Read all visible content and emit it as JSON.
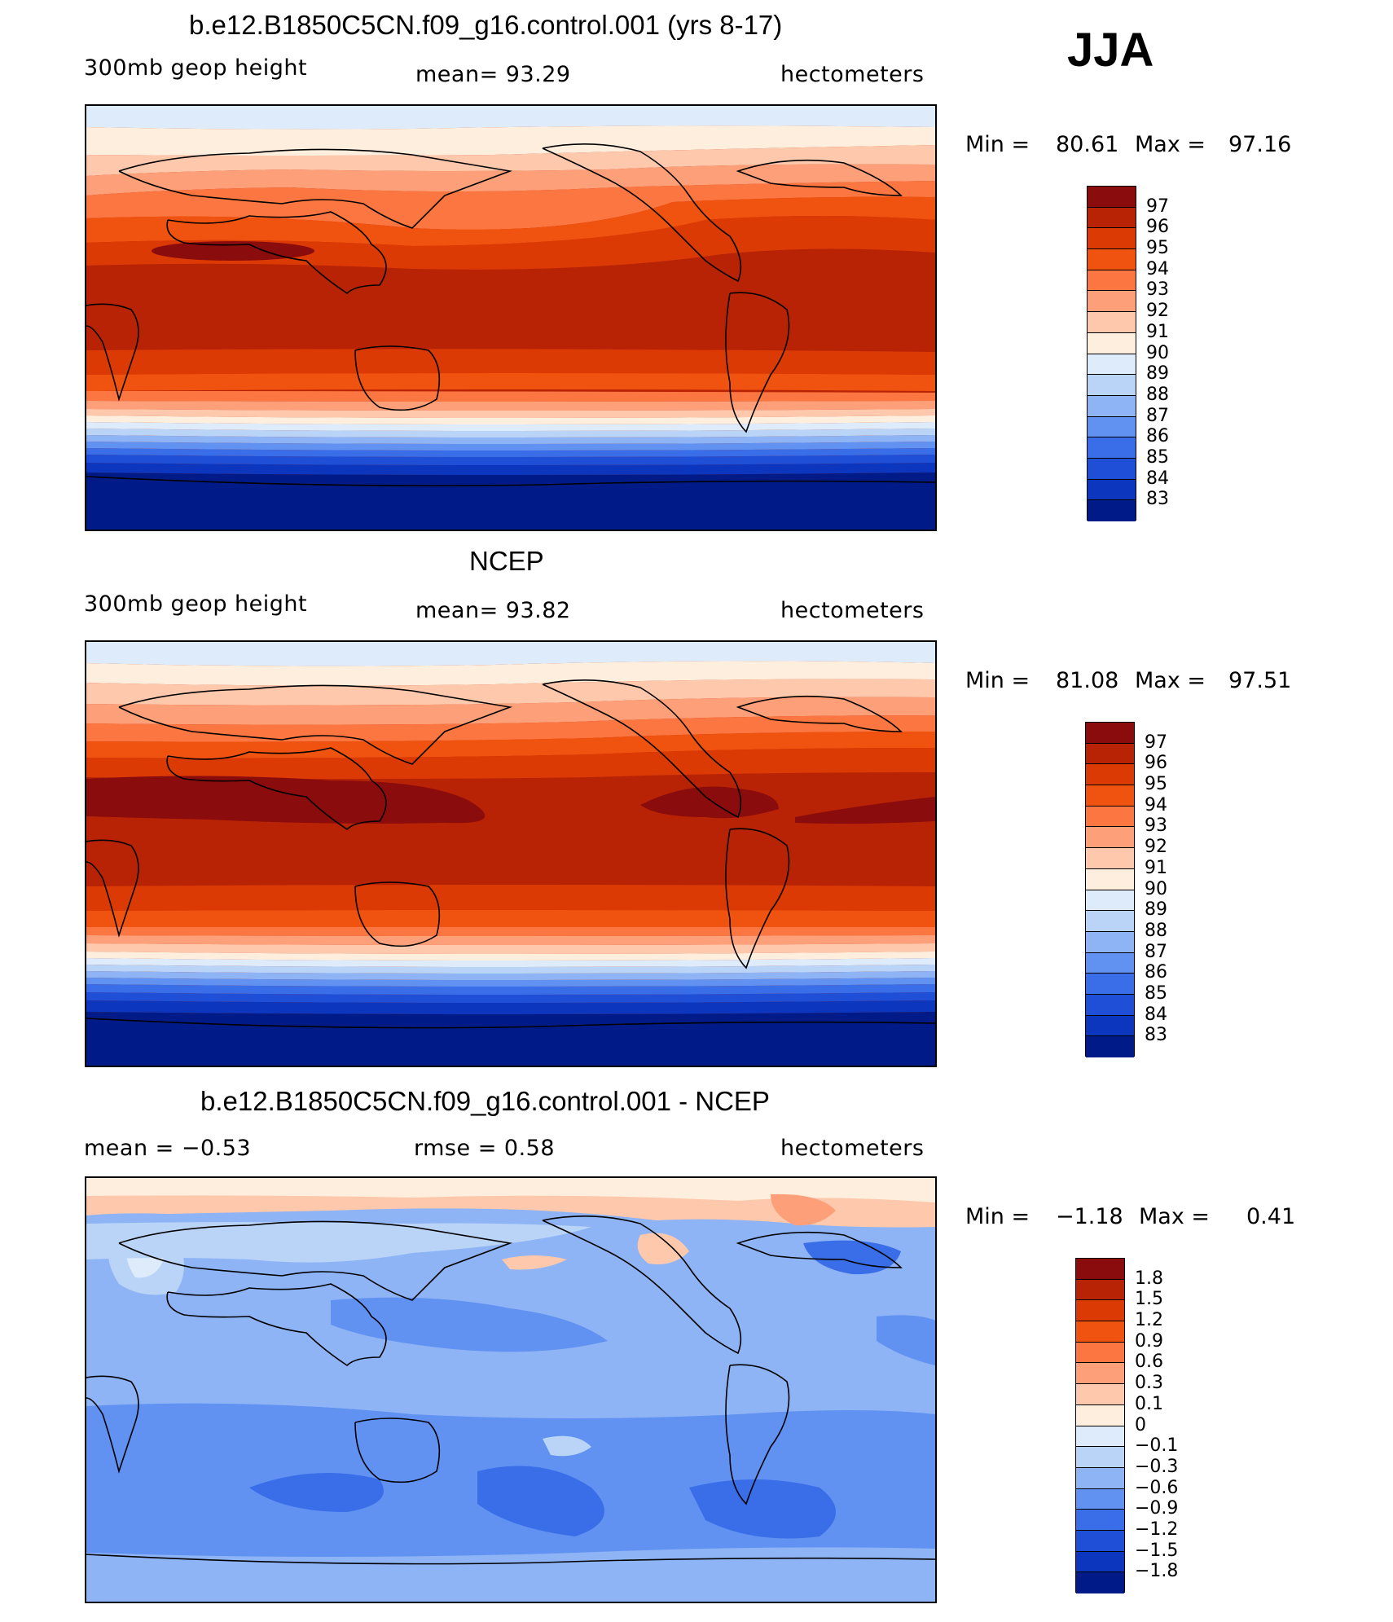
{
  "season": "JJA",
  "panels": [
    {
      "title": "b.e12.B1850C5CN.f09_g16.control.001 (yrs 8-17)",
      "left_label": "300mb  geop  height",
      "center_label": "mean=   93.29",
      "right_label": "hectometers",
      "min_label": "Min  =",
      "min_value": "80.61",
      "max_label": "Max  =",
      "max_value": "97.16",
      "colorbar_labels": [
        "97",
        "96",
        "95",
        "94",
        "93",
        "92",
        "91",
        "90",
        "89",
        "88",
        "87",
        "86",
        "85",
        "84",
        "83"
      ],
      "colorbar_colors": [
        "#8b0c0c",
        "#b82306",
        "#db3a05",
        "#f0520f",
        "#fb7640",
        "#fda07a",
        "#fec8ac",
        "#feeedd",
        "#deebfa",
        "#bad4f8",
        "#8fb4f5",
        "#6192f1",
        "#3a6ee8",
        "#1f4ed7",
        "#0c36bd",
        "#001a88"
      ]
    },
    {
      "title": "NCEP",
      "left_label": "300mb  geop  height",
      "center_label": "mean=   93.82",
      "right_label": "hectometers",
      "min_label": "Min  =",
      "min_value": "81.08",
      "max_label": "Max  =",
      "max_value": "97.51",
      "colorbar_labels": [
        "97",
        "96",
        "95",
        "94",
        "93",
        "92",
        "91",
        "90",
        "89",
        "88",
        "87",
        "86",
        "85",
        "84",
        "83"
      ],
      "colorbar_colors": [
        "#8b0c0c",
        "#b82306",
        "#db3a05",
        "#f0520f",
        "#fb7640",
        "#fda07a",
        "#fec8ac",
        "#feeedd",
        "#deebfa",
        "#bad4f8",
        "#8fb4f5",
        "#6192f1",
        "#3a6ee8",
        "#1f4ed7",
        "#0c36bd",
        "#001a88"
      ]
    },
    {
      "title": "b.e12.B1850C5CN.f09_g16.control.001 - NCEP",
      "left_label": "mean  =     −0.53",
      "center_label": "rmse  =     0.58",
      "right_label": "hectometers",
      "min_label": "Min  =",
      "min_value": "−1.18",
      "max_label": "Max  =",
      "max_value": "0.41",
      "colorbar_labels": [
        "1.8",
        "1.5",
        "1.2",
        "0.9",
        "0.6",
        "0.3",
        "0.1",
        "0",
        "−0.1",
        "−0.3",
        "−0.6",
        "−0.9",
        "−1.2",
        "−1.5",
        "−1.8"
      ],
      "colorbar_colors": [
        "#8b0c0c",
        "#b82306",
        "#db3a05",
        "#f0520f",
        "#fb7640",
        "#fda07a",
        "#fec8ac",
        "#feeedd",
        "#deebfa",
        "#bad4f8",
        "#8fb4f5",
        "#6192f1",
        "#3a6ee8",
        "#1f4ed7",
        "#0c36bd",
        "#001a88"
      ]
    }
  ]
}
